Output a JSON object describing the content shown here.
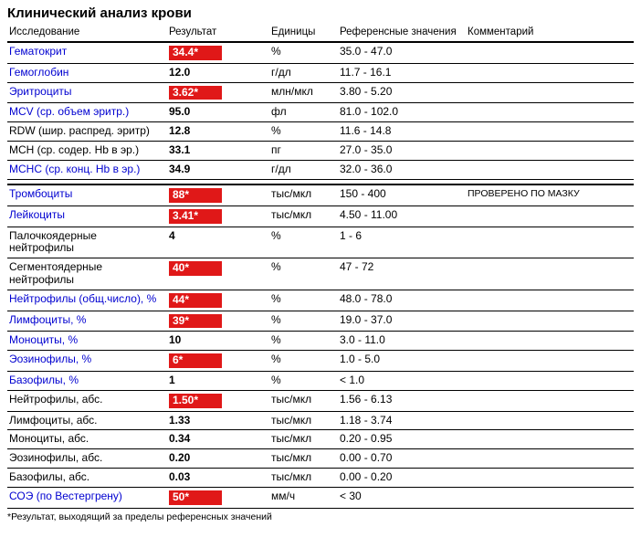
{
  "title": "Клинический анализ крови",
  "columns": {
    "name": "Исследование",
    "result": "Результат",
    "units": "Единицы",
    "reference": "Референсные значения",
    "comment": "Комментарий"
  },
  "footnote": "*Результат, выходящий за пределы референсных значений",
  "rows": [
    {
      "name": "Гематокрит",
      "link": true,
      "result": "34.4*",
      "flag": true,
      "units": "%",
      "ref": "35.0 - 47.0",
      "comment": ""
    },
    {
      "name": "Гемоглобин",
      "link": true,
      "result": "12.0",
      "flag": false,
      "units": "г/дл",
      "ref": "11.7 - 16.1",
      "comment": ""
    },
    {
      "name": "Эритроциты",
      "link": true,
      "result": "3.62*",
      "flag": true,
      "units": "млн/мкл",
      "ref": "3.80 - 5.20",
      "comment": ""
    },
    {
      "name": "MCV (ср. объем эритр.)",
      "link": true,
      "result": "95.0",
      "flag": false,
      "units": "фл",
      "ref": "81.0 - 102.0",
      "comment": ""
    },
    {
      "name": "RDW (шир. распред. эритр)",
      "link": false,
      "result": "12.8",
      "flag": false,
      "units": "%",
      "ref": "11.6 - 14.8",
      "comment": ""
    },
    {
      "name": "MCH (ср. содер. Hb в эр.)",
      "link": false,
      "result": "33.1",
      "flag": false,
      "units": "пг",
      "ref": "27.0 - 35.0",
      "comment": ""
    },
    {
      "name": "MCHC (ср. конц. Hb в эр.)",
      "link": true,
      "result": "34.9",
      "flag": false,
      "units": "г/дл",
      "ref": "32.0 - 36.0",
      "comment": ""
    },
    {
      "spacer": true
    },
    {
      "name": "Тромбоциты",
      "link": true,
      "result": "88*",
      "flag": true,
      "units": "тыс/мкл",
      "ref": "150 - 400",
      "comment": "ПРОВЕРЕНО ПО МАЗКУ"
    },
    {
      "name": "Лейкоциты",
      "link": true,
      "result": "3.41*",
      "flag": true,
      "units": "тыс/мкл",
      "ref": "4.50 - 11.00",
      "comment": ""
    },
    {
      "name": "Палочкоядерные нейтрофилы",
      "link": false,
      "result": "4",
      "flag": false,
      "units": "%",
      "ref": "1 - 6",
      "comment": ""
    },
    {
      "name": "Сегментоядерные нейтрофилы",
      "link": false,
      "result": "40*",
      "flag": true,
      "units": "%",
      "ref": "47 - 72",
      "comment": ""
    },
    {
      "name": "Нейтрофилы (общ.число), %",
      "link": true,
      "result": "44*",
      "flag": true,
      "units": "%",
      "ref": "48.0 - 78.0",
      "comment": ""
    },
    {
      "name": "Лимфоциты, %",
      "link": true,
      "result": "39*",
      "flag": true,
      "units": "%",
      "ref": "19.0 - 37.0",
      "comment": ""
    },
    {
      "name": "Моноциты, %",
      "link": true,
      "result": "10",
      "flag": false,
      "units": "%",
      "ref": "3.0 - 11.0",
      "comment": ""
    },
    {
      "name": "Эозинофилы, %",
      "link": true,
      "result": "6*",
      "flag": true,
      "units": "%",
      "ref": "1.0 - 5.0",
      "comment": ""
    },
    {
      "name": "Базофилы, %",
      "link": true,
      "result": "1",
      "flag": false,
      "units": "%",
      "ref": "< 1.0",
      "comment": ""
    },
    {
      "name": "Нейтрофилы, абс.",
      "link": false,
      "result": "1.50*",
      "flag": true,
      "units": "тыс/мкл",
      "ref": "1.56 - 6.13",
      "comment": ""
    },
    {
      "name": "Лимфоциты, абс.",
      "link": false,
      "result": "1.33",
      "flag": false,
      "units": "тыс/мкл",
      "ref": "1.18 - 3.74",
      "comment": ""
    },
    {
      "name": "Моноциты, абс.",
      "link": false,
      "result": "0.34",
      "flag": false,
      "units": "тыс/мкл",
      "ref": "0.20 - 0.95",
      "comment": ""
    },
    {
      "name": "Эозинофилы, абс.",
      "link": false,
      "result": "0.20",
      "flag": false,
      "units": "тыс/мкл",
      "ref": "0.00 - 0.70",
      "comment": ""
    },
    {
      "name": "Базофилы, абс.",
      "link": false,
      "result": "0.03",
      "flag": false,
      "units": "тыс/мкл",
      "ref": "0.00 - 0.20",
      "comment": ""
    },
    {
      "name": "СОЭ (по Вестергрену)",
      "link": true,
      "result": "50*",
      "flag": true,
      "units": "мм/ч",
      "ref": "< 30",
      "comment": ""
    }
  ]
}
